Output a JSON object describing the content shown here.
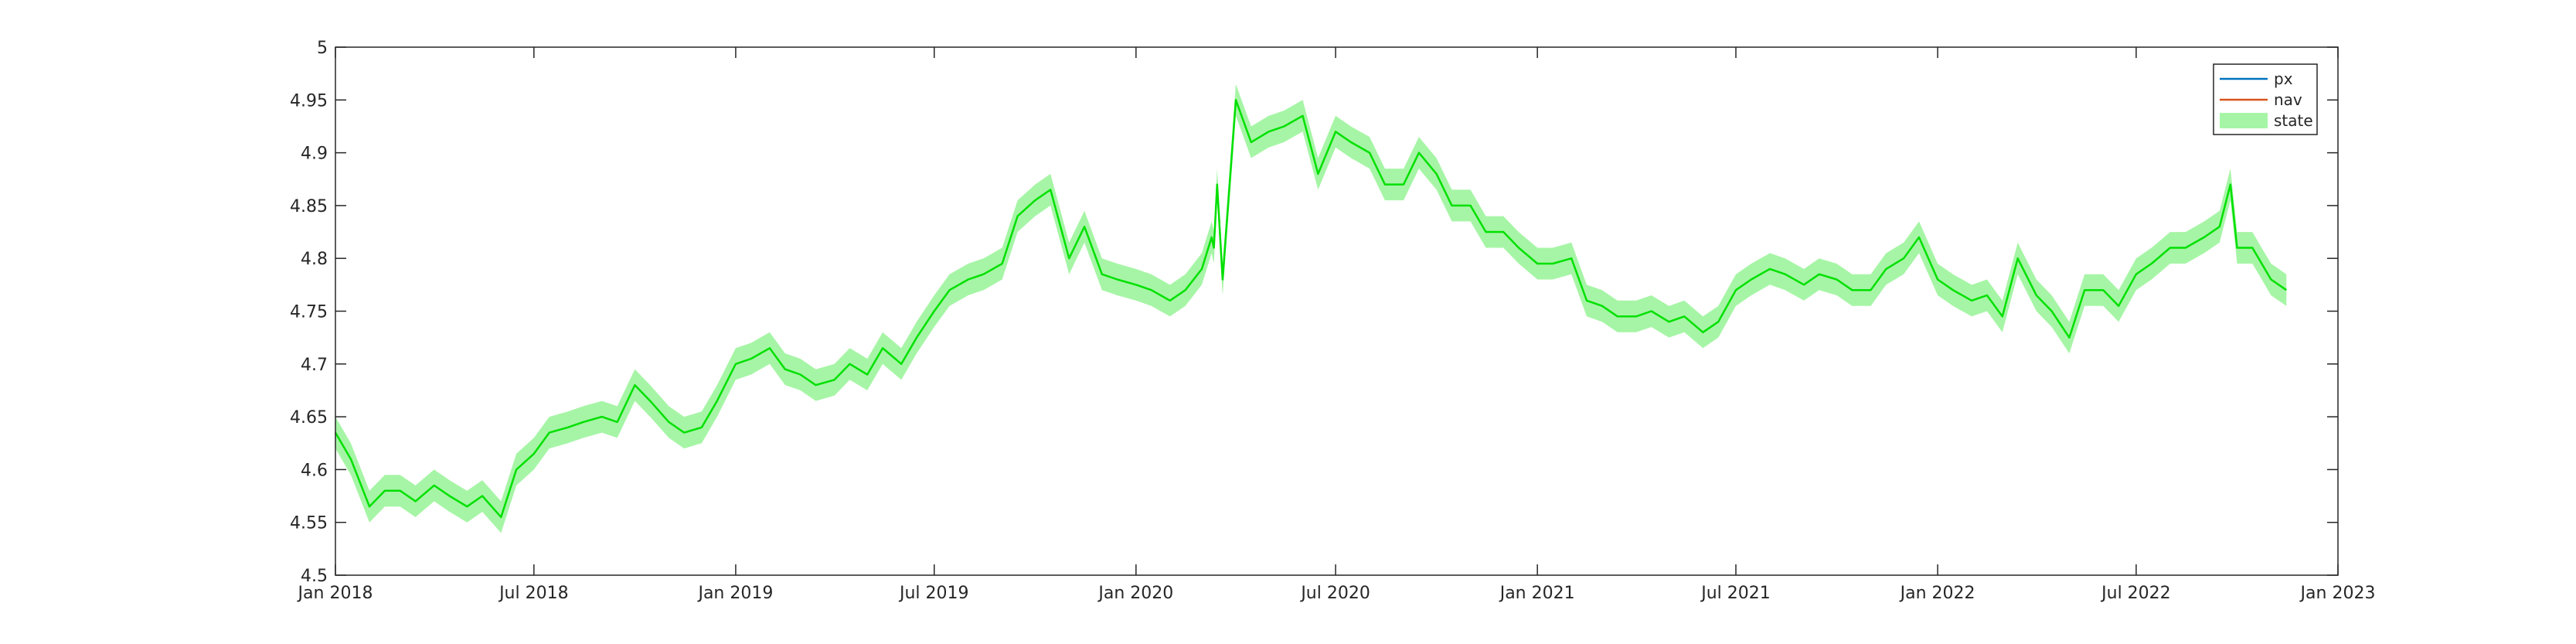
{
  "chart_data": {
    "type": "line",
    "title": "",
    "xlabel": "",
    "ylabel": "",
    "xlim": [
      "2018-01-01",
      "2023-01-01"
    ],
    "ylim": [
      4.5,
      5.0
    ],
    "grid": false,
    "legend_position": "top-right",
    "x_ticks": [
      "Jan 2018",
      "Jul 2018",
      "Jan 2019",
      "Jul 2019",
      "Jan 2020",
      "Jul 2020",
      "Jan 2021",
      "Jul 2021",
      "Jan 2022",
      "Jul 2022",
      "Jan 2023"
    ],
    "y_ticks": [
      "4.5",
      "4.55",
      "4.6",
      "4.65",
      "4.7",
      "4.75",
      "4.8",
      "4.85",
      "4.9",
      "4.95",
      "5"
    ],
    "series": [
      {
        "name": "px",
        "color": "#0072BD",
        "x": [],
        "y": []
      },
      {
        "name": "nav",
        "color": "#D95319",
        "x": [],
        "y": []
      },
      {
        "name": "state",
        "color": "#00E000",
        "band_color": "#A6F5A6",
        "band_halfwidth": 0.015,
        "x": [
          "2018-01-01",
          "2018-01-15",
          "2018-02-01",
          "2018-02-15",
          "2018-03-01",
          "2018-03-15",
          "2018-04-01",
          "2018-04-15",
          "2018-05-01",
          "2018-05-15",
          "2018-06-01",
          "2018-06-15",
          "2018-07-01",
          "2018-07-15",
          "2018-08-01",
          "2018-08-15",
          "2018-09-01",
          "2018-09-15",
          "2018-10-01",
          "2018-10-15",
          "2018-11-01",
          "2018-11-15",
          "2018-12-01",
          "2018-12-15",
          "2019-01-01",
          "2019-01-15",
          "2019-02-01",
          "2019-02-15",
          "2019-03-01",
          "2019-03-15",
          "2019-04-01",
          "2019-04-15",
          "2019-05-01",
          "2019-05-15",
          "2019-06-01",
          "2019-06-15",
          "2019-07-01",
          "2019-07-15",
          "2019-08-01",
          "2019-08-15",
          "2019-09-01",
          "2019-09-15",
          "2019-10-01",
          "2019-10-15",
          "2019-11-01",
          "2019-11-15",
          "2019-12-01",
          "2019-12-15",
          "2020-01-01",
          "2020-01-15",
          "2020-02-01",
          "2020-02-15",
          "2020-03-01",
          "2020-03-10",
          "2020-03-12",
          "2020-03-15",
          "2020-03-20",
          "2020-04-01",
          "2020-04-15",
          "2020-05-01",
          "2020-05-15",
          "2020-06-01",
          "2020-06-15",
          "2020-07-01",
          "2020-07-15",
          "2020-08-01",
          "2020-08-15",
          "2020-09-01",
          "2020-09-15",
          "2020-10-01",
          "2020-10-15",
          "2020-11-01",
          "2020-11-15",
          "2020-12-01",
          "2020-12-15",
          "2021-01-01",
          "2021-01-15",
          "2021-02-01",
          "2021-02-15",
          "2021-03-01",
          "2021-03-15",
          "2021-04-01",
          "2021-04-15",
          "2021-05-01",
          "2021-05-15",
          "2021-06-01",
          "2021-06-15",
          "2021-07-01",
          "2021-07-15",
          "2021-08-01",
          "2021-08-15",
          "2021-09-01",
          "2021-09-15",
          "2021-10-01",
          "2021-10-15",
          "2021-11-01",
          "2021-11-15",
          "2021-12-01",
          "2021-12-15",
          "2022-01-01",
          "2022-01-15",
          "2022-02-01",
          "2022-02-15",
          "2022-03-01",
          "2022-03-15",
          "2022-04-01",
          "2022-04-15",
          "2022-05-01",
          "2022-05-15",
          "2022-06-01",
          "2022-06-15",
          "2022-07-01",
          "2022-07-15",
          "2022-08-01",
          "2022-08-15",
          "2022-09-01",
          "2022-09-15",
          "2022-09-25",
          "2022-10-01",
          "2022-10-15",
          "2022-11-01",
          "2022-11-15"
        ],
        "y": [
          4.635,
          4.61,
          4.565,
          4.58,
          4.58,
          4.57,
          4.585,
          4.575,
          4.565,
          4.575,
          4.555,
          4.6,
          4.615,
          4.635,
          4.64,
          4.645,
          4.65,
          4.645,
          4.68,
          4.665,
          4.645,
          4.635,
          4.64,
          4.665,
          4.7,
          4.705,
          4.715,
          4.695,
          4.69,
          4.68,
          4.685,
          4.7,
          4.69,
          4.715,
          4.7,
          4.725,
          4.75,
          4.77,
          4.78,
          4.785,
          4.795,
          4.84,
          4.855,
          4.865,
          4.8,
          4.83,
          4.785,
          4.78,
          4.775,
          4.77,
          4.76,
          4.77,
          4.79,
          4.82,
          4.81,
          4.87,
          4.78,
          4.95,
          4.91,
          4.92,
          4.925,
          4.935,
          4.88,
          4.92,
          4.91,
          4.9,
          4.87,
          4.87,
          4.9,
          4.88,
          4.85,
          4.85,
          4.825,
          4.825,
          4.81,
          4.795,
          4.795,
          4.8,
          4.76,
          4.755,
          4.745,
          4.745,
          4.75,
          4.74,
          4.745,
          4.73,
          4.74,
          4.77,
          4.78,
          4.79,
          4.785,
          4.775,
          4.785,
          4.78,
          4.77,
          4.77,
          4.79,
          4.8,
          4.82,
          4.78,
          4.77,
          4.76,
          4.765,
          4.745,
          4.8,
          4.765,
          4.75,
          4.725,
          4.77,
          4.77,
          4.755,
          4.785,
          4.795,
          4.81,
          4.81,
          4.82,
          4.83,
          4.87,
          4.81,
          4.81,
          4.78,
          4.77
        ]
      }
    ]
  }
}
